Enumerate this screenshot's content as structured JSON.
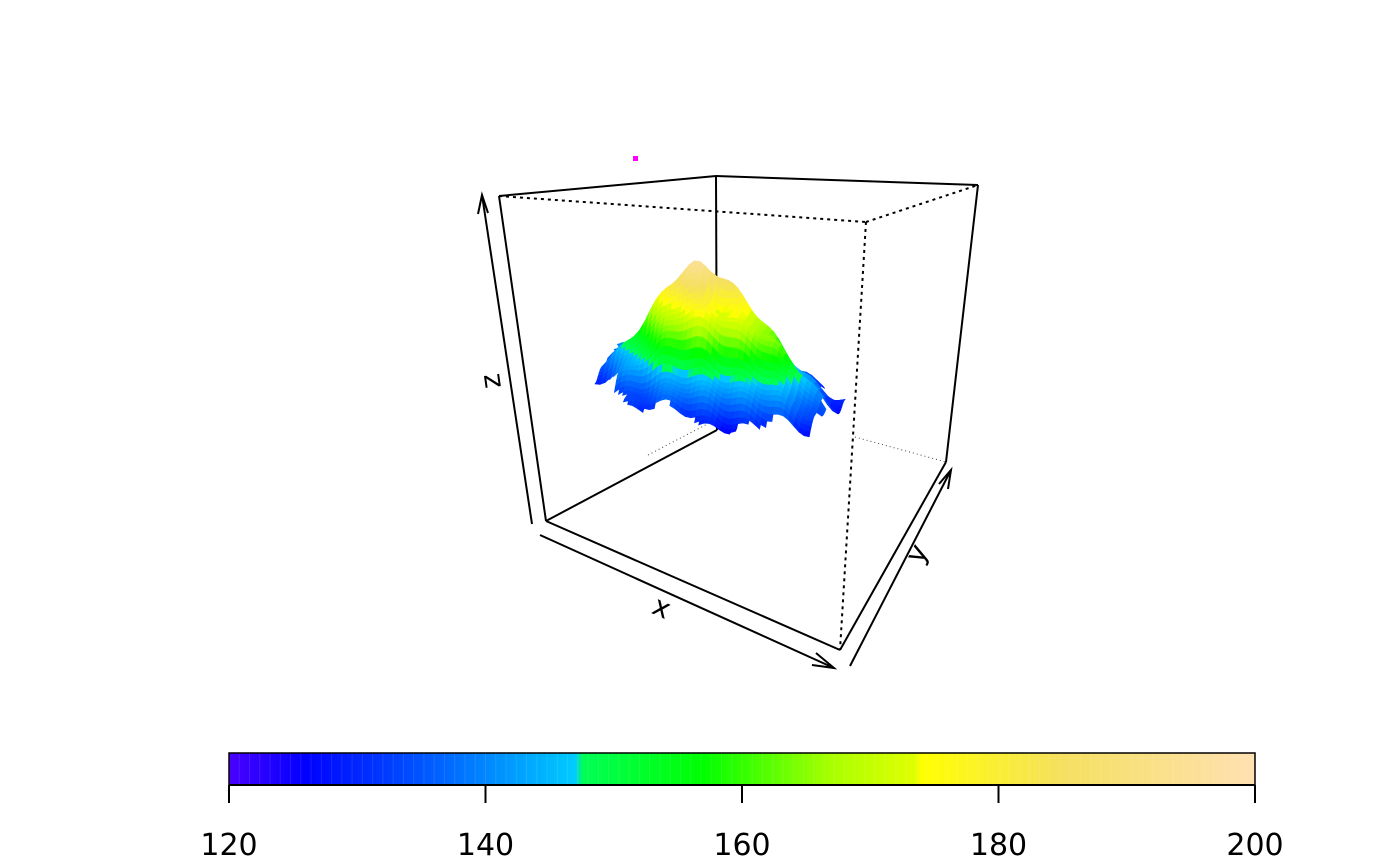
{
  "chart_data": {
    "type": "surface3d",
    "title": "",
    "xlabel": "x",
    "ylabel": "y",
    "zlabel": "z",
    "zlim": [
      120,
      200
    ],
    "grid": false,
    "colorbar": {
      "placement": "bottom",
      "range": [
        120,
        200
      ],
      "tick_values": [
        120,
        140,
        160,
        180,
        200
      ],
      "tick_labels": [
        "120",
        "140",
        "160",
        "180",
        "200"
      ],
      "stops": [
        {
          "value": 120,
          "color": "#4a00ff"
        },
        {
          "value": 126,
          "color": "#0000ff"
        },
        {
          "value": 135,
          "color": "#0055ff"
        },
        {
          "value": 147,
          "color": "#00ccff"
        },
        {
          "value": 147.6,
          "color": "#00ff55"
        },
        {
          "value": 157,
          "color": "#00ff00"
        },
        {
          "value": 167,
          "color": "#aaff00"
        },
        {
          "value": 173.5,
          "color": "#e0ff00"
        },
        {
          "value": 174,
          "color": "#ffff00"
        },
        {
          "value": 185,
          "color": "#f5e060"
        },
        {
          "value": 200,
          "color": "#ffe0b2"
        }
      ]
    },
    "surface_color_by": "z",
    "marker_color": "#ff00ff"
  }
}
